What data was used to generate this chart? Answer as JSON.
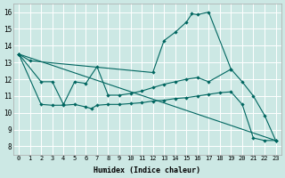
{
  "xlabel": "Humidex (Indice chaleur)",
  "bg_color": "#cce8e4",
  "line_color": "#006660",
  "grid_color": "#ffffff",
  "xlim": [
    -0.5,
    23.5
  ],
  "ylim": [
    7.5,
    16.5
  ],
  "xticks": [
    0,
    1,
    2,
    3,
    4,
    5,
    6,
    7,
    8,
    9,
    10,
    11,
    12,
    13,
    14,
    15,
    16,
    17,
    18,
    19,
    20,
    21,
    22,
    23
  ],
  "yticks": [
    8,
    9,
    10,
    11,
    12,
    13,
    14,
    15,
    16
  ],
  "line1_x": [
    0,
    1,
    12,
    13,
    14,
    15,
    15.5,
    16,
    17,
    19,
    20,
    21,
    22,
    23
  ],
  "line1_y": [
    13.5,
    13.1,
    12.4,
    14.3,
    14.8,
    15.4,
    15.9,
    15.85,
    16.0,
    12.6,
    11.85,
    11.0,
    9.85,
    8.35
  ],
  "line2_x": [
    0,
    23
  ],
  "line2_y": [
    13.5,
    8.35
  ],
  "line3_x": [
    0,
    2,
    3,
    4,
    5,
    6,
    7,
    8,
    9,
    10,
    11,
    12,
    13,
    14,
    15,
    16,
    17,
    19
  ],
  "line3_y": [
    13.5,
    11.85,
    11.85,
    10.5,
    11.85,
    11.75,
    12.75,
    11.05,
    11.05,
    11.15,
    11.3,
    11.5,
    11.7,
    11.85,
    12.0,
    12.1,
    11.85,
    12.6
  ],
  "line4_x": [
    0,
    2,
    3,
    4,
    5,
    6,
    6.5,
    7,
    8,
    9,
    10,
    11,
    12,
    13,
    14,
    15,
    16,
    17,
    18,
    19,
    20,
    21,
    22,
    23
  ],
  "line4_y": [
    13.5,
    10.5,
    10.45,
    10.45,
    10.5,
    10.35,
    10.25,
    10.45,
    10.5,
    10.5,
    10.55,
    10.6,
    10.7,
    10.75,
    10.85,
    10.9,
    11.0,
    11.1,
    11.2,
    11.25,
    10.5,
    8.5,
    8.35,
    8.35
  ]
}
